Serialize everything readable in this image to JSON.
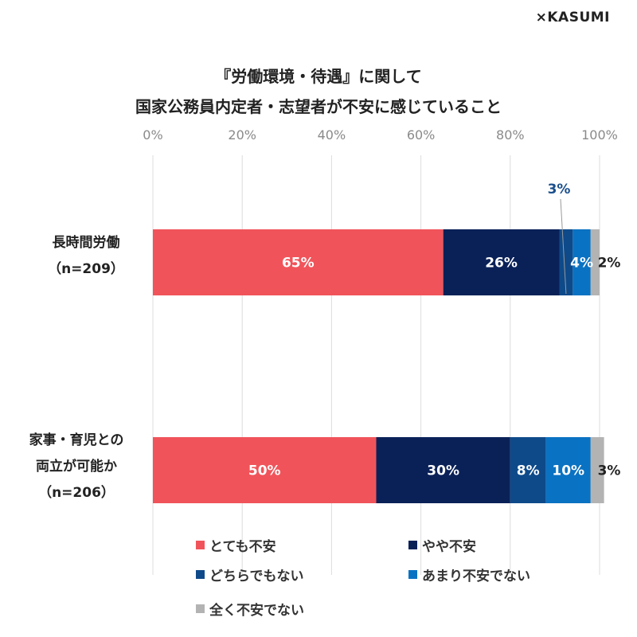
{
  "brand": "×KASUMI",
  "chart_data": {
    "type": "bar",
    "orientation": "horizontal",
    "stacked": true,
    "title_lines": [
      "『労働環境・待遇』に関して",
      "国家公務員内定者・志望者が不安に感じていること"
    ],
    "xlim": [
      0,
      100
    ],
    "x_ticks": [
      "0%",
      "20%",
      "40%",
      "60%",
      "80%",
      "100%"
    ],
    "x_tick_values": [
      0,
      20,
      40,
      60,
      80,
      100
    ],
    "grid": true,
    "legend_position": "bottom",
    "categories": [
      [
        "長時間労働",
        "（n=209）"
      ],
      [
        "家事・育児との",
        "両立が可能か",
        "（n=206）"
      ]
    ],
    "series": [
      {
        "name": "とても不安",
        "color": "#f0545a",
        "values": [
          65,
          50
        ],
        "labels": [
          "65%",
          "50%"
        ]
      },
      {
        "name": "やや不安",
        "color": "#0a2158",
        "values": [
          26,
          30
        ],
        "labels": [
          "26%",
          "30%"
        ]
      },
      {
        "name": "どちらでもない",
        "color": "#0e4a8a",
        "values": [
          3,
          8
        ],
        "labels": [
          "3%",
          "8%"
        ]
      },
      {
        "name": "あまり不安でない",
        "color": "#0a72c2",
        "values": [
          4,
          10
        ],
        "labels": [
          "4%",
          "10%"
        ]
      },
      {
        "name": "全く不安でない",
        "color": "#b3b3b3",
        "values": [
          2,
          3
        ],
        "labels": [
          "2%",
          "3%"
        ]
      }
    ]
  }
}
